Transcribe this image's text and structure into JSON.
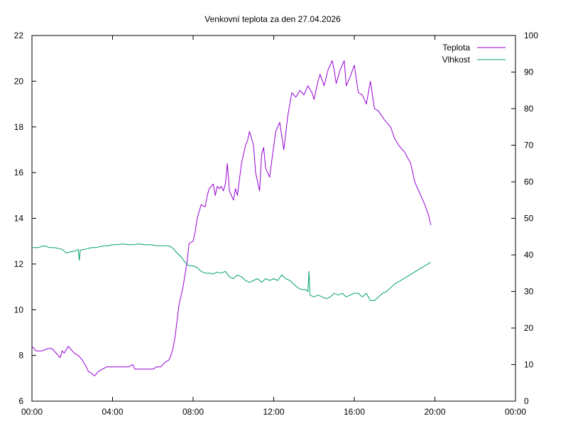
{
  "chart_data": {
    "type": "line",
    "title": "Venkovní teplota za den 27.04.2026",
    "xlim": [
      0,
      24
    ],
    "ylim_left": [
      6,
      22
    ],
    "ylim_right": [
      0,
      100
    ],
    "x_ticks": [
      "00:00",
      "04:00",
      "08:00",
      "12:00",
      "16:00",
      "20:00",
      "00:00"
    ],
    "y_ticks_left": [
      "6",
      "8",
      "10",
      "12",
      "14",
      "16",
      "18",
      "20",
      "22"
    ],
    "y_ticks_right": [
      "0",
      "10",
      "20",
      "30",
      "40",
      "50",
      "60",
      "70",
      "80",
      "90",
      "100"
    ],
    "legend_position": "top-right",
    "grid": false,
    "series": [
      {
        "name": "Teplota",
        "axis": "left",
        "color": "#9400d3",
        "x": [
          0,
          0.2,
          0.5,
          0.8,
          1.0,
          1.2,
          1.4,
          1.5,
          1.6,
          1.8,
          1.9,
          2.1,
          2.3,
          2.5,
          2.7,
          2.8,
          3.0,
          3.1,
          3.2,
          3.3,
          3.5,
          3.7,
          3.9,
          4.0,
          4.2,
          4.5,
          4.8,
          5.0,
          5.1,
          5.2,
          5.4,
          5.7,
          6.0,
          6.2,
          6.4,
          6.6,
          6.8,
          6.9,
          7.0,
          7.1,
          7.2,
          7.3,
          7.5,
          7.7,
          7.8,
          8.0,
          8.1,
          8.2,
          8.4,
          8.6,
          8.7,
          8.8,
          9.0,
          9.1,
          9.2,
          9.3,
          9.4,
          9.5,
          9.6,
          9.7,
          9.8,
          10.0,
          10.1,
          10.2,
          10.4,
          10.6,
          10.7,
          10.8,
          11.0,
          11.1,
          11.3,
          11.4,
          11.5,
          11.6,
          11.8,
          11.9,
          12.1,
          12.3,
          12.5,
          12.7,
          12.9,
          13.1,
          13.3,
          13.5,
          13.7,
          13.9,
          14.0,
          14.2,
          14.3,
          14.5,
          14.7,
          14.9,
          15.0,
          15.1,
          15.3,
          15.5,
          15.6,
          15.8,
          16.0,
          16.2,
          16.4,
          16.6,
          16.8,
          17.0,
          17.2,
          17.5,
          17.8,
          18.0,
          18.2,
          18.5,
          18.8,
          19.0,
          19.3,
          19.5,
          19.7,
          19.8
        ],
        "y": [
          8.4,
          8.2,
          8.2,
          8.3,
          8.3,
          8.1,
          7.9,
          8.2,
          8.1,
          8.4,
          8.3,
          8.1,
          8.0,
          7.8,
          7.5,
          7.3,
          7.2,
          7.1,
          7.2,
          7.3,
          7.4,
          7.5,
          7.5,
          7.5,
          7.5,
          7.5,
          7.5,
          7.6,
          7.4,
          7.4,
          7.4,
          7.4,
          7.4,
          7.5,
          7.5,
          7.7,
          7.8,
          8.0,
          8.3,
          8.8,
          9.5,
          10.2,
          11.0,
          12.1,
          12.9,
          13.0,
          13.4,
          14.0,
          14.6,
          14.5,
          15.0,
          15.3,
          15.5,
          15.0,
          15.4,
          15.3,
          15.4,
          15.2,
          15.5,
          16.4,
          15.2,
          14.8,
          15.3,
          15.0,
          16.4,
          17.2,
          17.4,
          17.8,
          17.2,
          16.0,
          15.2,
          16.8,
          17.1,
          16.2,
          15.8,
          16.5,
          17.8,
          18.2,
          17.0,
          18.5,
          19.5,
          19.3,
          19.6,
          19.4,
          19.8,
          19.5,
          19.2,
          20.0,
          20.3,
          19.8,
          20.5,
          20.9,
          20.5,
          19.9,
          20.5,
          20.9,
          19.8,
          20.2,
          20.7,
          19.5,
          19.4,
          19.0,
          20.0,
          18.8,
          18.7,
          18.3,
          18.0,
          17.5,
          17.2,
          16.9,
          16.4,
          15.6,
          15.0,
          14.6,
          14.1,
          13.7
        ]
      },
      {
        "name": "Vlhkost",
        "axis": "right",
        "color": "#009e73",
        "x": [
          0,
          0.3,
          0.6,
          0.9,
          1.1,
          1.3,
          1.5,
          1.7,
          1.9,
          2.1,
          2.3,
          2.35,
          2.4,
          2.6,
          2.8,
          3.0,
          3.2,
          3.4,
          3.6,
          3.8,
          4.0,
          4.2,
          4.5,
          4.8,
          5.0,
          5.3,
          5.6,
          5.9,
          6.2,
          6.5,
          6.8,
          7.0,
          7.2,
          7.4,
          7.6,
          7.8,
          8.0,
          8.2,
          8.4,
          8.6,
          8.8,
          9.0,
          9.2,
          9.4,
          9.6,
          9.8,
          10.0,
          10.2,
          10.4,
          10.6,
          10.8,
          11.0,
          11.2,
          11.4,
          11.6,
          11.8,
          12.0,
          12.2,
          12.4,
          12.6,
          12.8,
          13.0,
          13.2,
          13.4,
          13.6,
          13.7,
          13.75,
          13.8,
          14.0,
          14.2,
          14.4,
          14.6,
          14.8,
          15.0,
          15.2,
          15.4,
          15.6,
          15.8,
          16.0,
          16.2,
          16.4,
          16.6,
          16.8,
          17.0,
          17.2,
          17.4,
          17.6,
          17.8,
          18.0,
          18.3,
          18.6,
          18.9,
          19.2,
          19.5,
          19.8
        ],
        "y": [
          42,
          42,
          42.5,
          42,
          42,
          41.8,
          41.5,
          40.5,
          40.8,
          41,
          41.5,
          38.5,
          41.3,
          41.5,
          41.8,
          42,
          42,
          42.3,
          42.5,
          42.5,
          42.8,
          42.8,
          43,
          42.8,
          42.8,
          43,
          42.8,
          42.8,
          42.5,
          42.5,
          42.5,
          41.8,
          40.5,
          39.5,
          38,
          37,
          37,
          36.5,
          35.5,
          35,
          35,
          34.8,
          35.3,
          35,
          35.5,
          34,
          33.5,
          34.5,
          34,
          33,
          32.5,
          33,
          33.5,
          32.5,
          33.5,
          33,
          33.5,
          33,
          34.5,
          33.5,
          33,
          32,
          31,
          30.5,
          30.5,
          30,
          35.5,
          29,
          28.5,
          29,
          28.5,
          28,
          28.5,
          29.5,
          29,
          29.5,
          28.5,
          29,
          29.5,
          29.5,
          28.5,
          29.5,
          27.5,
          27.5,
          28.5,
          29.5,
          30,
          31,
          32,
          33,
          34,
          35,
          36,
          37,
          38
        ]
      }
    ]
  }
}
